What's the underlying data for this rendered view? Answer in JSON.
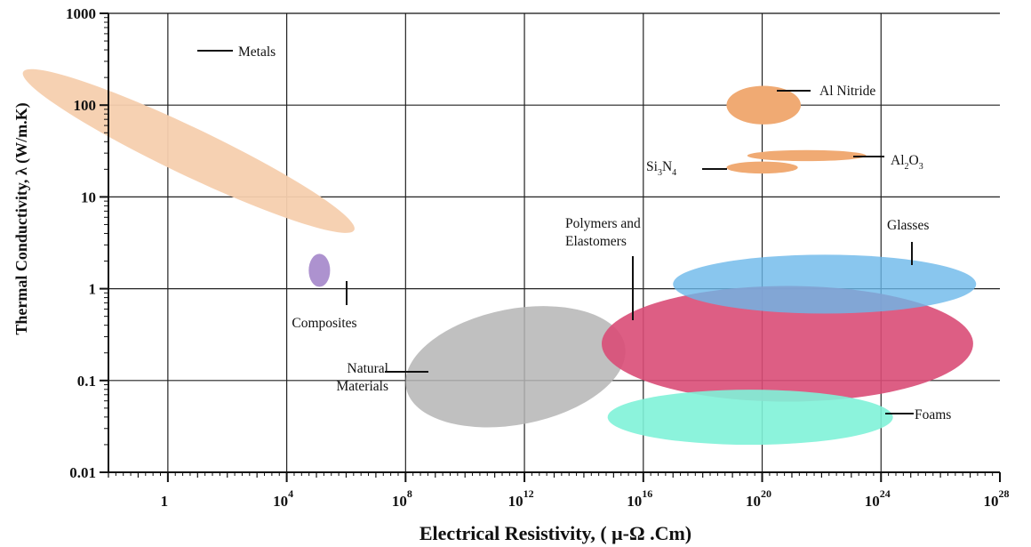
{
  "chart_data": {
    "type": "scatter",
    "title": "",
    "xlabel": "Electrical Resistivity,  ( μ-Ω .Cm)",
    "ylabel": "Thermal Conductivity, λ (W/m.K)",
    "x_scale": "log",
    "y_scale": "log",
    "xlim": [
      0.01,
      1e+28
    ],
    "ylim": [
      0.01,
      1000
    ],
    "grid": true,
    "x_ticks": [
      {
        "value": 1,
        "base": "1",
        "exp": ""
      },
      {
        "value": 10000.0,
        "base": "10",
        "exp": "4"
      },
      {
        "value": 100000000.0,
        "base": "10",
        "exp": "8"
      },
      {
        "value": 1000000000000.0,
        "base": "10",
        "exp": "12"
      },
      {
        "value": 1e+16,
        "base": "10",
        "exp": "16"
      },
      {
        "value": 1e+20,
        "base": "10",
        "exp": "20"
      },
      {
        "value": 1e+24,
        "base": "10",
        "exp": "24"
      },
      {
        "value": 1e+28,
        "base": "10",
        "exp": "28"
      }
    ],
    "y_ticks": [
      {
        "value": 0.01,
        "label": "0.01"
      },
      {
        "value": 0.1,
        "label": "0.1"
      },
      {
        "value": 1,
        "label": "1"
      },
      {
        "value": 10,
        "label": "10"
      },
      {
        "value": 100,
        "label": "100"
      },
      {
        "value": 1000,
        "label": "1000"
      }
    ],
    "regions": [
      {
        "id": "metals",
        "label": [
          "Metals"
        ],
        "color": "#f5cfae",
        "log_x_center": 0.7,
        "log_y_center": 1.5,
        "log_x_halfwidth": 0.8,
        "log_y_halfwidth": 2.0,
        "rotation_deg": -64.5,
        "opacity": 0.95
      },
      {
        "id": "composites",
        "label": [
          "Composites"
        ],
        "color": "#a98ccc",
        "log_x_center": 5.1,
        "log_y_center": 0.2,
        "log_x_halfwidth": 0.36,
        "log_y_halfwidth": 0.18,
        "rotation_deg": 0,
        "opacity": 0.95
      },
      {
        "id": "natural-materials",
        "label": [
          "Natural",
          "Materials"
        ],
        "color": "#b5b5b5",
        "log_x_center": 11.7,
        "log_y_center": -0.85,
        "log_x_halfwidth": 3.75,
        "log_y_halfwidth": 0.63,
        "rotation_deg": -11,
        "opacity": 0.85
      },
      {
        "id": "polymers-elastomers",
        "label": [
          "Polymers and",
          "Elastomers"
        ],
        "color": "#d94d77",
        "log_x_center": 20.85,
        "log_y_center": -0.6,
        "log_x_halfwidth": 6.25,
        "log_y_halfwidth": 0.63,
        "rotation_deg": 0,
        "opacity": 0.9
      },
      {
        "id": "glasses",
        "label": [
          "Glasses"
        ],
        "color": "#6cb8ea",
        "log_x_center": 22.1,
        "log_y_center": 0.05,
        "log_x_halfwidth": 5.1,
        "log_y_halfwidth": 0.32,
        "rotation_deg": 0,
        "opacity": 0.8
      },
      {
        "id": "foams",
        "label": [
          "Foams"
        ],
        "color": "#7ff2d8",
        "log_x_center": 19.6,
        "log_y_center": -1.4,
        "log_x_halfwidth": 4.8,
        "log_y_halfwidth": 0.3,
        "rotation_deg": 0,
        "opacity": 0.9
      },
      {
        "id": "al-nitride",
        "label": [
          "Al Nitride"
        ],
        "color": "#f0aa73",
        "log_x_center": 20.05,
        "log_y_center": 2.0,
        "log_x_halfwidth": 1.25,
        "log_y_halfwidth": 0.21,
        "rotation_deg": 0,
        "opacity": 1
      },
      {
        "id": "al2o3",
        "label": [
          "Al",
          "2",
          "O",
          "3"
        ],
        "color": "#f0aa73",
        "log_x_center": 21.5,
        "log_y_center": 1.45,
        "log_x_halfwidth": 2.0,
        "log_y_halfwidth": 0.06,
        "rotation_deg": 0,
        "opacity": 1
      },
      {
        "id": "si3n4",
        "label": [
          "Si",
          "3",
          "N",
          "4"
        ],
        "color": "#f0aa73",
        "log_x_center": 20.0,
        "log_y_center": 1.32,
        "log_x_halfwidth": 1.2,
        "log_y_halfwidth": 0.065,
        "rotation_deg": 0,
        "opacity": 1
      }
    ]
  }
}
